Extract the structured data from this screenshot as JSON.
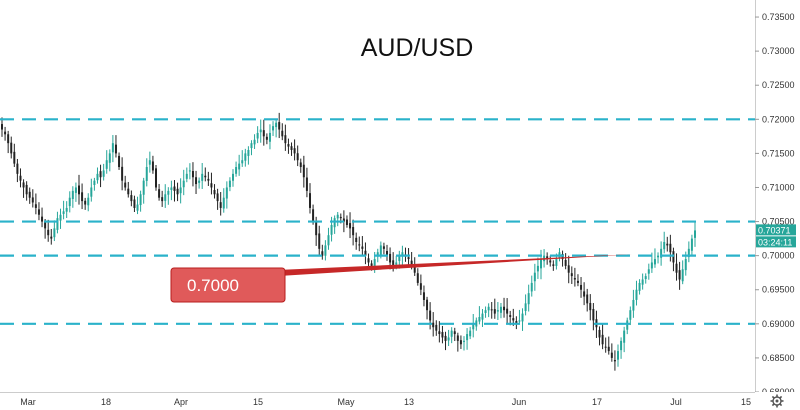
{
  "chart_data": {
    "type": "candlestick",
    "title": "AUD/USD",
    "y_axis": {
      "ticks": [
        "0.73500",
        "0.73000",
        "0.72500",
        "0.72000",
        "0.71500",
        "0.71000",
        "0.70500",
        "0.70000",
        "0.69500",
        "0.69000",
        "0.68500",
        "0.68000"
      ],
      "ylim": [
        0.68,
        0.7375
      ]
    },
    "x_axis": {
      "ticks": [
        "Mar",
        "18",
        "Apr",
        "15",
        "May",
        "13",
        "Jun",
        "17",
        "Jul",
        "15"
      ]
    },
    "levels": [
      0.72,
      0.705,
      0.7,
      0.69
    ],
    "level_color": "#2ab2ca",
    "callout": {
      "label": "0.7000",
      "color": "#e05a5a"
    },
    "trend_line": {
      "start": 0.6975,
      "end": 0.7002,
      "color": "#c62828"
    },
    "last_price": {
      "value": "0.70371",
      "countdown": "03:24:11",
      "color": "#26a69a"
    },
    "series": [
      {
        "close": [
          0.7185,
          0.7178,
          0.7165,
          0.715,
          0.7135,
          0.712,
          0.711,
          0.71,
          0.709,
          0.7085,
          0.7078,
          0.707,
          0.706,
          0.705,
          0.704,
          0.703,
          0.7025,
          0.704,
          0.7055,
          0.706,
          0.7065,
          0.707,
          0.7085,
          0.7095,
          0.71,
          0.709,
          0.708,
          0.7075,
          0.7085,
          0.71,
          0.711,
          0.712,
          0.7115,
          0.7125,
          0.714,
          0.715,
          0.7165,
          0.715,
          0.713,
          0.711,
          0.71,
          0.709,
          0.708,
          0.707,
          0.7075,
          0.709,
          0.711,
          0.713,
          0.714,
          0.7125,
          0.71,
          0.7085,
          0.708,
          0.709,
          0.7095,
          0.71,
          0.7095,
          0.709,
          0.71,
          0.711,
          0.712,
          0.7125,
          0.7115,
          0.7105,
          0.711,
          0.712,
          0.7115,
          0.711,
          0.71,
          0.709,
          0.708,
          0.707,
          0.7085,
          0.71,
          0.711,
          0.712,
          0.713,
          0.7135,
          0.714,
          0.715,
          0.7155,
          0.7165,
          0.717,
          0.718,
          0.7185,
          0.7175,
          0.717,
          0.718,
          0.719,
          0.7195,
          0.7185,
          0.7175,
          0.7165,
          0.716,
          0.7155,
          0.715,
          0.714,
          0.713,
          0.7115,
          0.7095,
          0.707,
          0.705,
          0.703,
          0.701,
          0.7,
          0.7015,
          0.703,
          0.7045,
          0.7055,
          0.706,
          0.7055,
          0.705,
          0.7045,
          0.704,
          0.703,
          0.702,
          0.7015,
          0.701,
          0.7,
          0.699,
          0.6985,
          0.6995,
          0.7005,
          0.7015,
          0.701,
          0.7,
          0.699,
          0.6985,
          0.699,
          0.7,
          0.7005,
          0.7,
          0.6995,
          0.6985,
          0.6975,
          0.696,
          0.695,
          0.6935,
          0.692,
          0.6905,
          0.6895,
          0.689,
          0.6885,
          0.688,
          0.6875,
          0.688,
          0.689,
          0.6885,
          0.6875,
          0.687,
          0.6875,
          0.6885,
          0.689,
          0.69,
          0.6905,
          0.691,
          0.6915,
          0.692,
          0.6925,
          0.692,
          0.6915,
          0.692,
          0.6925,
          0.692,
          0.6915,
          0.691,
          0.6905,
          0.69,
          0.6905,
          0.6915,
          0.693,
          0.6945,
          0.696,
          0.6975,
          0.6985,
          0.6995,
          0.7,
          0.6995,
          0.699,
          0.6985,
          0.6995,
          0.7005,
          0.6995,
          0.6985,
          0.6975,
          0.697,
          0.6965,
          0.696,
          0.695,
          0.694,
          0.693,
          0.692,
          0.6905,
          0.6895,
          0.688,
          0.687,
          0.6865,
          0.686,
          0.685,
          0.6845,
          0.686,
          0.6875,
          0.689,
          0.6905,
          0.692,
          0.6935,
          0.695,
          0.696,
          0.6965,
          0.697,
          0.698,
          0.699,
          0.6995,
          0.7,
          0.701,
          0.702,
          0.7015,
          0.7005,
          0.699,
          0.6975,
          0.6965,
          0.698,
          0.6995,
          0.701,
          0.7025,
          0.7037
        ]
      }
    ]
  },
  "ui": {
    "settings_icon": "gear-icon"
  }
}
